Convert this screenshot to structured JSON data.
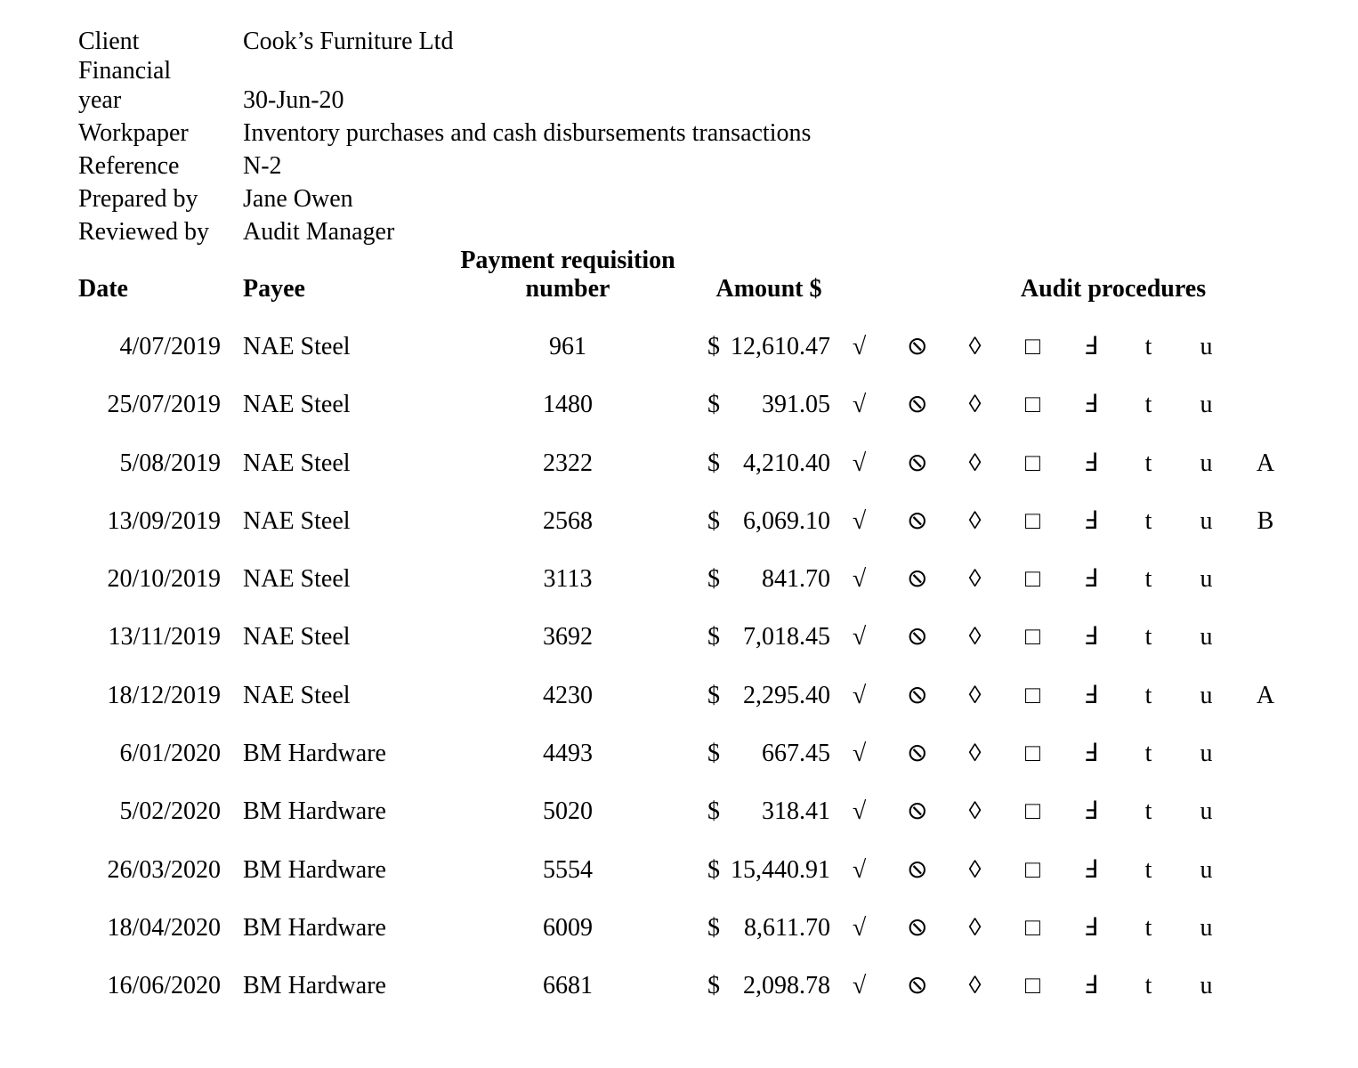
{
  "meta": {
    "rows": [
      {
        "label": "Client",
        "value": "Cook’s Furniture Ltd"
      },
      {
        "label": "Financial year",
        "value": "30-Jun-20"
      },
      {
        "label": "Workpaper",
        "value": "Inventory purchases and cash disbursements transactions"
      },
      {
        "label": "Reference",
        "value": "N-2"
      },
      {
        "label": "Prepared by",
        "value": "Jane Owen"
      },
      {
        "label": "Reviewed by",
        "value": "Audit Manager"
      }
    ]
  },
  "table": {
    "headers": {
      "date": "Date",
      "payee": "Payee",
      "requisition_line1": "Payment requisition",
      "requisition_line2": "number",
      "amount": "Amount $",
      "audit": "Audit procedures"
    },
    "currency_symbol": "$",
    "tickmarks": [
      "√",
      "⊘",
      "◊",
      "□",
      "Ⅎ",
      "t",
      "u"
    ],
    "rows": [
      {
        "date": "4/07/2019",
        "payee": "NAE Steel",
        "requisition": "961",
        "amount": "12,610.47",
        "note": ""
      },
      {
        "date": "25/07/2019",
        "payee": "NAE Steel",
        "requisition": "1480",
        "amount": "391.05",
        "note": ""
      },
      {
        "date": "5/08/2019",
        "payee": "NAE Steel",
        "requisition": "2322",
        "amount": "4,210.40",
        "note": "A"
      },
      {
        "date": "13/09/2019",
        "payee": "NAE Steel",
        "requisition": "2568",
        "amount": "6,069.10",
        "note": "B"
      },
      {
        "date": "20/10/2019",
        "payee": "NAE Steel",
        "requisition": "3113",
        "amount": "841.70",
        "note": ""
      },
      {
        "date": "13/11/2019",
        "payee": "NAE Steel",
        "requisition": "3692",
        "amount": "7,018.45",
        "note": ""
      },
      {
        "date": "18/12/2019",
        "payee": "NAE Steel",
        "requisition": "4230",
        "amount": "2,295.40",
        "note": "A"
      },
      {
        "date": "6/01/2020",
        "payee": "BM Hardware",
        "requisition": "4493",
        "amount": "667.45",
        "note": ""
      },
      {
        "date": "5/02/2020",
        "payee": "BM Hardware",
        "requisition": "5020",
        "amount": "318.41",
        "note": ""
      },
      {
        "date": "26/03/2020",
        "payee": "BM Hardware",
        "requisition": "5554",
        "amount": "15,440.91",
        "note": ""
      },
      {
        "date": "18/04/2020",
        "payee": "BM Hardware",
        "requisition": "6009",
        "amount": "8,611.70",
        "note": ""
      },
      {
        "date": "16/06/2020",
        "payee": "BM Hardware",
        "requisition": "6681",
        "amount": "2,098.78",
        "note": ""
      }
    ]
  }
}
